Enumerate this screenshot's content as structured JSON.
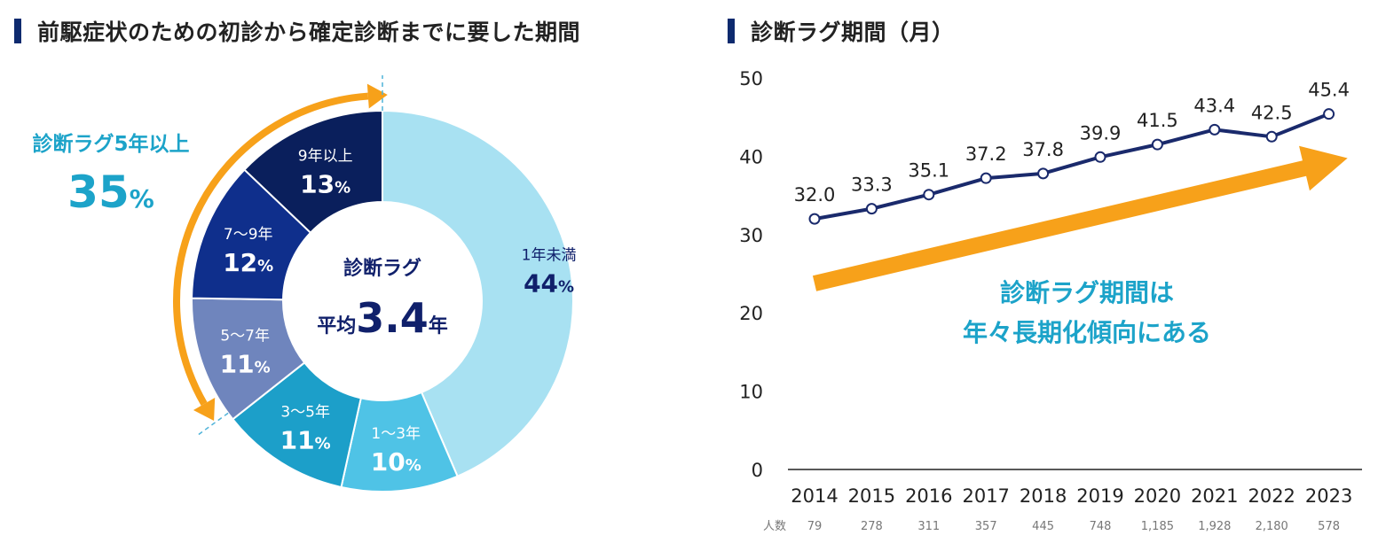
{
  "colors": {
    "title_bar": "#0d2a6e",
    "navy": "#10206b",
    "accent_blue": "#1ca3c9",
    "arrow_orange": "#f7a11a",
    "line": "#1a2a6c",
    "axis_text": "#222222",
    "count_text": "#777777"
  },
  "icons": {
    "title_marker": "vertical-bar-icon",
    "arc_arrow": "curved-double-arrow-icon",
    "trend_arrow": "right-trend-arrow-icon"
  },
  "left": {
    "title": "前駆症状のための初診から確定診断までに要した期間",
    "callout": {
      "label": "診断ラグ5年以上",
      "value": "35",
      "unit": "%"
    },
    "center": {
      "label": "診断ラグ",
      "prefix": "平均",
      "value": "3.4",
      "suffix": "年"
    }
  },
  "right": {
    "title": "診断ラグ期間（月）",
    "annotation": [
      "診断ラグ期間は",
      "年々長期化傾向にある"
    ],
    "counts_label": "人数",
    "counts": [
      "79",
      "278",
      "311",
      "357",
      "445",
      "748",
      "1,185",
      "1,928",
      "2,180",
      "578"
    ]
  },
  "chart_data": [
    {
      "type": "pie",
      "variant": "donut",
      "title": "前駆症状のための初診から確定診断までに要した期間",
      "slices": [
        {
          "label": "1年未満",
          "value": 44,
          "display": "44",
          "unit": "%",
          "color": "#a8e1f2",
          "text_color": "#10206b"
        },
        {
          "label": "1〜3年",
          "value": 10,
          "display": "10",
          "unit": "%",
          "color": "#4fc3e6",
          "text_color": "#ffffff"
        },
        {
          "label": "3〜5年",
          "value": 11,
          "display": "11",
          "unit": "%",
          "color": "#1c9fc9",
          "text_color": "#ffffff"
        },
        {
          "label": "5〜7年",
          "value": 11,
          "display": "11",
          "unit": "%",
          "color": "#6f85bd",
          "text_color": "#ffffff"
        },
        {
          "label": "7〜9年",
          "value": 12,
          "display": "12",
          "unit": "%",
          "color": "#0f2f8c",
          "text_color": "#ffffff"
        },
        {
          "label": "9年以上",
          "value": 13,
          "display": "13",
          "unit": "%",
          "color": "#0a1f5c",
          "text_color": "#ffffff"
        }
      ]
    },
    {
      "type": "line",
      "title": "診断ラグ期間（月）",
      "x": [
        "2014",
        "2015",
        "2016",
        "2017",
        "2018",
        "2019",
        "2020",
        "2021",
        "2022",
        "2023"
      ],
      "series": [
        {
          "values": [
            32.0,
            33.3,
            35.1,
            37.2,
            37.8,
            39.9,
            41.5,
            43.4,
            42.5,
            45.4
          ],
          "labels": [
            "32.0",
            "33.3",
            "35.1",
            "37.2",
            "37.8",
            "39.9",
            "41.5",
            "43.4",
            "42.5",
            "45.4"
          ]
        }
      ],
      "ylim": [
        0,
        50
      ],
      "yticks": [
        "0",
        "10",
        "20",
        "30",
        "40",
        "50"
      ],
      "grid": false
    }
  ]
}
